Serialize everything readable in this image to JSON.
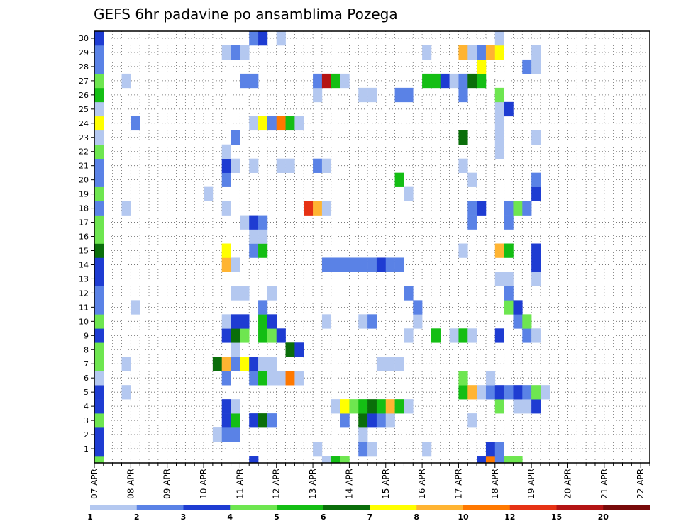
{
  "chart_data": {
    "type": "heatmap",
    "title": "GEFS 6hr padavine po ansamblima Pozega",
    "xlabel": "",
    "ylabel": "",
    "x_dates": [
      "07 APR",
      "08 APR",
      "09 APR",
      "10 APR",
      "11 APR",
      "12 APR",
      "13 APR",
      "14 APR",
      "15 APR",
      "16 APR",
      "17 APR",
      "18 APR",
      "19 APR",
      "20 APR",
      "21 APR",
      "22 APR"
    ],
    "x_steps": 61,
    "y_members": [
      1,
      2,
      3,
      4,
      5,
      6,
      7,
      8,
      9,
      10,
      11,
      12,
      13,
      14,
      15,
      16,
      17,
      18,
      19,
      20,
      21,
      22,
      23,
      24,
      25,
      26,
      27,
      28,
      29,
      30
    ],
    "y_range": [
      0,
      30
    ],
    "grid": true,
    "legend_position": "bottom",
    "colorbar": {
      "labels": [
        "1",
        "2",
        "3",
        "4",
        "5",
        "6",
        "7",
        "8",
        "10",
        "12",
        "15",
        "20"
      ],
      "colors": [
        "#b4c8f0",
        "#5a82e6",
        "#1e3cd2",
        "#6ee650",
        "#14be14",
        "#0a6e0a",
        "#ffff00",
        "#ffb432",
        "#ff7800",
        "#e63214",
        "#b41414",
        "#780a0a"
      ]
    },
    "cells": [
      {
        "x": 0,
        "y": 0,
        "v": 4
      },
      {
        "x": 0,
        "y": 1,
        "v": 3
      },
      {
        "x": 0,
        "y": 2,
        "v": 3
      },
      {
        "x": 0,
        "y": 3,
        "v": 4
      },
      {
        "x": 0,
        "y": 4,
        "v": 3
      },
      {
        "x": 0,
        "y": 5,
        "v": 3
      },
      {
        "x": 0,
        "y": 6,
        "v": 1
      },
      {
        "x": 0,
        "y": 7,
        "v": 4
      },
      {
        "x": 0,
        "y": 8,
        "v": 4
      },
      {
        "x": 0,
        "y": 9,
        "v": 3
      },
      {
        "x": 0,
        "y": 10,
        "v": 4
      },
      {
        "x": 0,
        "y": 11,
        "v": 2
      },
      {
        "x": 0,
        "y": 12,
        "v": 2
      },
      {
        "x": 0,
        "y": 13,
        "v": 3
      },
      {
        "x": 0,
        "y": 14,
        "v": 3
      },
      {
        "x": 0,
        "y": 15,
        "v": 6
      },
      {
        "x": 0,
        "y": 16,
        "v": 4
      },
      {
        "x": 0,
        "y": 17,
        "v": 4
      },
      {
        "x": 0,
        "y": 18,
        "v": 2
      },
      {
        "x": 0,
        "y": 19,
        "v": 4
      },
      {
        "x": 0,
        "y": 20,
        "v": 2
      },
      {
        "x": 0,
        "y": 21,
        "v": 2
      },
      {
        "x": 0,
        "y": 22,
        "v": 4
      },
      {
        "x": 0,
        "y": 23,
        "v": 1
      },
      {
        "x": 0,
        "y": 24,
        "v": 7
      },
      {
        "x": 0,
        "y": 25,
        "v": 1
      },
      {
        "x": 0,
        "y": 26,
        "v": 5
      },
      {
        "x": 0,
        "y": 27,
        "v": 4
      },
      {
        "x": 0,
        "y": 28,
        "v": 2
      },
      {
        "x": 0,
        "y": 29,
        "v": 2
      },
      {
        "x": 0,
        "y": 30,
        "v": 3
      },
      {
        "x": 3,
        "y": 5,
        "v": 1
      },
      {
        "x": 3,
        "y": 7,
        "v": 1
      },
      {
        "x": 3,
        "y": 18,
        "v": 1
      },
      {
        "x": 3,
        "y": 27,
        "v": 1
      },
      {
        "x": 4,
        "y": 11,
        "v": 1
      },
      {
        "x": 4,
        "y": 24,
        "v": 2
      },
      {
        "x": 12,
        "y": 19,
        "v": 1
      },
      {
        "x": 13,
        "y": 2,
        "v": 1
      },
      {
        "x": 13,
        "y": 7,
        "v": 6
      },
      {
        "x": 14,
        "y": 2,
        "v": 2
      },
      {
        "x": 14,
        "y": 3,
        "v": 3
      },
      {
        "x": 14,
        "y": 4,
        "v": 3
      },
      {
        "x": 14,
        "y": 6,
        "v": 2
      },
      {
        "x": 14,
        "y": 7,
        "v": 8
      },
      {
        "x": 14,
        "y": 9,
        "v": 3
      },
      {
        "x": 14,
        "y": 10,
        "v": 1
      },
      {
        "x": 14,
        "y": 14,
        "v": 8
      },
      {
        "x": 14,
        "y": 15,
        "v": 7
      },
      {
        "x": 14,
        "y": 18,
        "v": 1
      },
      {
        "x": 14,
        "y": 20,
        "v": 2
      },
      {
        "x": 14,
        "y": 21,
        "v": 3
      },
      {
        "x": 14,
        "y": 22,
        "v": 1
      },
      {
        "x": 14,
        "y": 29,
        "v": 1
      },
      {
        "x": 15,
        "y": 2,
        "v": 2
      },
      {
        "x": 15,
        "y": 3,
        "v": 5
      },
      {
        "x": 15,
        "y": 4,
        "v": 1
      },
      {
        "x": 15,
        "y": 7,
        "v": 2
      },
      {
        "x": 15,
        "y": 8,
        "v": 1
      },
      {
        "x": 15,
        "y": 9,
        "v": 6
      },
      {
        "x": 15,
        "y": 10,
        "v": 3
      },
      {
        "x": 15,
        "y": 12,
        "v": 1
      },
      {
        "x": 15,
        "y": 14,
        "v": 1
      },
      {
        "x": 15,
        "y": 21,
        "v": 1
      },
      {
        "x": 15,
        "y": 23,
        "v": 2
      },
      {
        "x": 15,
        "y": 29,
        "v": 2
      },
      {
        "x": 16,
        "y": 7,
        "v": 7
      },
      {
        "x": 16,
        "y": 9,
        "v": 4
      },
      {
        "x": 16,
        "y": 10,
        "v": 3
      },
      {
        "x": 16,
        "y": 12,
        "v": 1
      },
      {
        "x": 16,
        "y": 17,
        "v": 1
      },
      {
        "x": 16,
        "y": 27,
        "v": 2
      },
      {
        "x": 16,
        "y": 29,
        "v": 1
      },
      {
        "x": 17,
        "y": 0,
        "v": 3
      },
      {
        "x": 17,
        "y": 3,
        "v": 3
      },
      {
        "x": 17,
        "y": 6,
        "v": 2
      },
      {
        "x": 17,
        "y": 7,
        "v": 3
      },
      {
        "x": 17,
        "y": 15,
        "v": 2
      },
      {
        "x": 17,
        "y": 16,
        "v": 1
      },
      {
        "x": 17,
        "y": 17,
        "v": 3
      },
      {
        "x": 17,
        "y": 21,
        "v": 1
      },
      {
        "x": 17,
        "y": 24,
        "v": 1
      },
      {
        "x": 17,
        "y": 27,
        "v": 2
      },
      {
        "x": 17,
        "y": 30,
        "v": 2
      },
      {
        "x": 18,
        "y": 3,
        "v": 6
      },
      {
        "x": 18,
        "y": 6,
        "v": 5
      },
      {
        "x": 18,
        "y": 7,
        "v": 1
      },
      {
        "x": 18,
        "y": 9,
        "v": 5
      },
      {
        "x": 18,
        "y": 10,
        "v": 5
      },
      {
        "x": 18,
        "y": 11,
        "v": 2
      },
      {
        "x": 18,
        "y": 15,
        "v": 5
      },
      {
        "x": 18,
        "y": 16,
        "v": 1
      },
      {
        "x": 18,
        "y": 17,
        "v": 2
      },
      {
        "x": 18,
        "y": 24,
        "v": 7
      },
      {
        "x": 18,
        "y": 30,
        "v": 3
      },
      {
        "x": 19,
        "y": 3,
        "v": 2
      },
      {
        "x": 19,
        "y": 6,
        "v": 1
      },
      {
        "x": 19,
        "y": 7,
        "v": 1
      },
      {
        "x": 19,
        "y": 9,
        "v": 4
      },
      {
        "x": 19,
        "y": 10,
        "v": 3
      },
      {
        "x": 19,
        "y": 12,
        "v": 1
      },
      {
        "x": 19,
        "y": 24,
        "v": 2
      },
      {
        "x": 20,
        "y": 6,
        "v": 1
      },
      {
        "x": 20,
        "y": 9,
        "v": 3
      },
      {
        "x": 20,
        "y": 21,
        "v": 1
      },
      {
        "x": 20,
        "y": 24,
        "v": 10
      },
      {
        "x": 20,
        "y": 30,
        "v": 1
      },
      {
        "x": 21,
        "y": 6,
        "v": 10
      },
      {
        "x": 21,
        "y": 8,
        "v": 6
      },
      {
        "x": 21,
        "y": 21,
        "v": 1
      },
      {
        "x": 21,
        "y": 24,
        "v": 5
      },
      {
        "x": 22,
        "y": 6,
        "v": 1
      },
      {
        "x": 22,
        "y": 8,
        "v": 3
      },
      {
        "x": 22,
        "y": 24,
        "v": 1
      },
      {
        "x": 23,
        "y": 18,
        "v": 12
      },
      {
        "x": 24,
        "y": 1,
        "v": 1
      },
      {
        "x": 24,
        "y": 18,
        "v": 8
      },
      {
        "x": 24,
        "y": 21,
        "v": 2
      },
      {
        "x": 24,
        "y": 26,
        "v": 1
      },
      {
        "x": 24,
        "y": 27,
        "v": 2
      },
      {
        "x": 25,
        "y": 0,
        "v": 1
      },
      {
        "x": 25,
        "y": 10,
        "v": 1
      },
      {
        "x": 25,
        "y": 14,
        "v": 2
      },
      {
        "x": 25,
        "y": 18,
        "v": 1
      },
      {
        "x": 25,
        "y": 21,
        "v": 1
      },
      {
        "x": 25,
        "y": 27,
        "v": 15
      },
      {
        "x": 26,
        "y": 0,
        "v": 5
      },
      {
        "x": 26,
        "y": 4,
        "v": 1
      },
      {
        "x": 26,
        "y": 14,
        "v": 2
      },
      {
        "x": 26,
        "y": 27,
        "v": 5
      },
      {
        "x": 27,
        "y": 0,
        "v": 4
      },
      {
        "x": 27,
        "y": 3,
        "v": 2
      },
      {
        "x": 27,
        "y": 4,
        "v": 7
      },
      {
        "x": 27,
        "y": 14,
        "v": 2
      },
      {
        "x": 27,
        "y": 27,
        "v": 1
      },
      {
        "x": 28,
        "y": 4,
        "v": 4
      },
      {
        "x": 28,
        "y": 14,
        "v": 2
      },
      {
        "x": 29,
        "y": 1,
        "v": 2
      },
      {
        "x": 29,
        "y": 2,
        "v": 1
      },
      {
        "x": 29,
        "y": 3,
        "v": 6
      },
      {
        "x": 29,
        "y": 4,
        "v": 5
      },
      {
        "x": 29,
        "y": 10,
        "v": 1
      },
      {
        "x": 29,
        "y": 14,
        "v": 2
      },
      {
        "x": 29,
        "y": 26,
        "v": 1
      },
      {
        "x": 30,
        "y": 1,
        "v": 1
      },
      {
        "x": 30,
        "y": 3,
        "v": 3
      },
      {
        "x": 30,
        "y": 4,
        "v": 6
      },
      {
        "x": 30,
        "y": 10,
        "v": 2
      },
      {
        "x": 30,
        "y": 14,
        "v": 2
      },
      {
        "x": 30,
        "y": 26,
        "v": 1
      },
      {
        "x": 31,
        "y": 3,
        "v": 2
      },
      {
        "x": 31,
        "y": 4,
        "v": 5
      },
      {
        "x": 31,
        "y": 7,
        "v": 1
      },
      {
        "x": 31,
        "y": 14,
        "v": 3
      },
      {
        "x": 32,
        "y": 3,
        "v": 1
      },
      {
        "x": 32,
        "y": 4,
        "v": 8
      },
      {
        "x": 32,
        "y": 7,
        "v": 1
      },
      {
        "x": 32,
        "y": 14,
        "v": 2
      },
      {
        "x": 33,
        "y": 4,
        "v": 5
      },
      {
        "x": 33,
        "y": 7,
        "v": 1
      },
      {
        "x": 33,
        "y": 14,
        "v": 2
      },
      {
        "x": 33,
        "y": 20,
        "v": 5
      },
      {
        "x": 33,
        "y": 26,
        "v": 2
      },
      {
        "x": 34,
        "y": 4,
        "v": 1
      },
      {
        "x": 34,
        "y": 9,
        "v": 1
      },
      {
        "x": 34,
        "y": 12,
        "v": 2
      },
      {
        "x": 34,
        "y": 19,
        "v": 1
      },
      {
        "x": 34,
        "y": 26,
        "v": 2
      },
      {
        "x": 35,
        "y": 10,
        "v": 1
      },
      {
        "x": 35,
        "y": 11,
        "v": 2
      },
      {
        "x": 36,
        "y": 1,
        "v": 1
      },
      {
        "x": 36,
        "y": 27,
        "v": 5
      },
      {
        "x": 36,
        "y": 29,
        "v": 1
      },
      {
        "x": 37,
        "y": 9,
        "v": 5
      },
      {
        "x": 37,
        "y": 27,
        "v": 5
      },
      {
        "x": 38,
        "y": 27,
        "v": 3
      },
      {
        "x": 39,
        "y": 9,
        "v": 1
      },
      {
        "x": 39,
        "y": 27,
        "v": 1
      },
      {
        "x": 40,
        "y": 5,
        "v": 5
      },
      {
        "x": 40,
        "y": 6,
        "v": 4
      },
      {
        "x": 40,
        "y": 9,
        "v": 5
      },
      {
        "x": 40,
        "y": 15,
        "v": 1
      },
      {
        "x": 40,
        "y": 21,
        "v": 1
      },
      {
        "x": 40,
        "y": 23,
        "v": 6
      },
      {
        "x": 40,
        "y": 26,
        "v": 2
      },
      {
        "x": 40,
        "y": 27,
        "v": 2
      },
      {
        "x": 40,
        "y": 29,
        "v": 8
      },
      {
        "x": 41,
        "y": 3,
        "v": 1
      },
      {
        "x": 41,
        "y": 5,
        "v": 8
      },
      {
        "x": 41,
        "y": 9,
        "v": 1
      },
      {
        "x": 41,
        "y": 17,
        "v": 2
      },
      {
        "x": 41,
        "y": 18,
        "v": 2
      },
      {
        "x": 41,
        "y": 20,
        "v": 1
      },
      {
        "x": 41,
        "y": 27,
        "v": 6
      },
      {
        "x": 41,
        "y": 29,
        "v": 1
      },
      {
        "x": 42,
        "y": 0,
        "v": 3
      },
      {
        "x": 42,
        "y": 5,
        "v": 1
      },
      {
        "x": 42,
        "y": 18,
        "v": 3
      },
      {
        "x": 42,
        "y": 27,
        "v": 5
      },
      {
        "x": 42,
        "y": 28,
        "v": 7
      },
      {
        "x": 42,
        "y": 29,
        "v": 2
      },
      {
        "x": 43,
        "y": 0,
        "v": 10
      },
      {
        "x": 43,
        "y": 1,
        "v": 3
      },
      {
        "x": 43,
        "y": 5,
        "v": 2
      },
      {
        "x": 43,
        "y": 6,
        "v": 1
      },
      {
        "x": 43,
        "y": 29,
        "v": 8
      },
      {
        "x": 44,
        "y": 0,
        "v": 2
      },
      {
        "x": 44,
        "y": 1,
        "v": 2
      },
      {
        "x": 44,
        "y": 4,
        "v": 4
      },
      {
        "x": 44,
        "y": 5,
        "v": 3
      },
      {
        "x": 44,
        "y": 9,
        "v": 3
      },
      {
        "x": 44,
        "y": 13,
        "v": 1
      },
      {
        "x": 44,
        "y": 15,
        "v": 8
      },
      {
        "x": 44,
        "y": 22,
        "v": 1
      },
      {
        "x": 44,
        "y": 23,
        "v": 1
      },
      {
        "x": 44,
        "y": 24,
        "v": 1
      },
      {
        "x": 44,
        "y": 25,
        "v": 1
      },
      {
        "x": 44,
        "y": 26,
        "v": 4
      },
      {
        "x": 44,
        "y": 29,
        "v": 7
      },
      {
        "x": 44,
        "y": 30,
        "v": 1
      },
      {
        "x": 45,
        "y": 0,
        "v": 4
      },
      {
        "x": 45,
        "y": 5,
        "v": 2
      },
      {
        "x": 45,
        "y": 11,
        "v": 4
      },
      {
        "x": 45,
        "y": 12,
        "v": 2
      },
      {
        "x": 45,
        "y": 13,
        "v": 1
      },
      {
        "x": 45,
        "y": 15,
        "v": 5
      },
      {
        "x": 45,
        "y": 17,
        "v": 2
      },
      {
        "x": 45,
        "y": 18,
        "v": 2
      },
      {
        "x": 45,
        "y": 25,
        "v": 3
      },
      {
        "x": 46,
        "y": 0,
        "v": 4
      },
      {
        "x": 46,
        "y": 4,
        "v": 1
      },
      {
        "x": 46,
        "y": 5,
        "v": 3
      },
      {
        "x": 46,
        "y": 10,
        "v": 2
      },
      {
        "x": 46,
        "y": 11,
        "v": 3
      },
      {
        "x": 46,
        "y": 18,
        "v": 4
      },
      {
        "x": 47,
        "y": 4,
        "v": 1
      },
      {
        "x": 47,
        "y": 5,
        "v": 2
      },
      {
        "x": 47,
        "y": 9,
        "v": 2
      },
      {
        "x": 47,
        "y": 10,
        "v": 4
      },
      {
        "x": 47,
        "y": 18,
        "v": 2
      },
      {
        "x": 47,
        "y": 28,
        "v": 2
      },
      {
        "x": 48,
        "y": 4,
        "v": 3
      },
      {
        "x": 48,
        "y": 5,
        "v": 4
      },
      {
        "x": 48,
        "y": 9,
        "v": 1
      },
      {
        "x": 48,
        "y": 13,
        "v": 1
      },
      {
        "x": 48,
        "y": 14,
        "v": 3
      },
      {
        "x": 48,
        "y": 15,
        "v": 3
      },
      {
        "x": 48,
        "y": 19,
        "v": 3
      },
      {
        "x": 48,
        "y": 20,
        "v": 2
      },
      {
        "x": 48,
        "y": 23,
        "v": 1
      },
      {
        "x": 48,
        "y": 28,
        "v": 1
      },
      {
        "x": 48,
        "y": 29,
        "v": 1
      },
      {
        "x": 49,
        "y": 5,
        "v": 1
      }
    ]
  }
}
